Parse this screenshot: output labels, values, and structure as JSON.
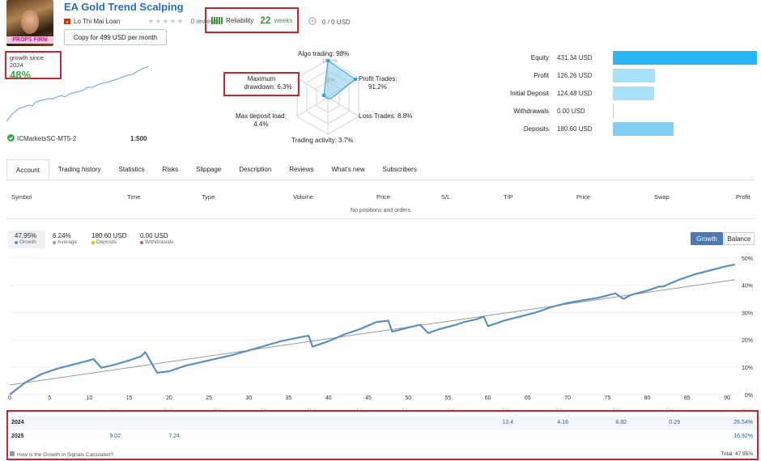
{
  "header": {
    "title": "EA Gold Trend Scalping",
    "author": "Lo Thi Mai Loan",
    "avatar_banner": "PROPS FIRM",
    "reviews": "0 reviews",
    "copy_button": "Copy for 499 USD per month",
    "reliability_label": "Reliability",
    "weeks_value": "22",
    "weeks_label": "weeks",
    "subscribers": "0 / 0 USD"
  },
  "growth_summary": {
    "label": "growth since 2024",
    "value": "48%",
    "broker": "ICMarketsSC-MT5-2",
    "leverage": "1:500"
  },
  "radar": {
    "algo": "Algo trading: 98%",
    "hundred": "100+%",
    "fifty": "50%",
    "profit_trades_1": "Profit Trades:",
    "profit_trades_2": "91.2%",
    "max_dd_1": "Maximum",
    "max_dd_2": "drawdown: 6.3%",
    "deposit_load_1": "Max deposit load:",
    "deposit_load_2": "4.4%",
    "loss_trades": "Loss Trades: 8.8%",
    "trading_activity": "Trading activity: 3.7%"
  },
  "financials": [
    {
      "label": "Equity",
      "value": "431.34 USD",
      "amount": 431.34
    },
    {
      "label": "Profit",
      "value": "126.26 USD",
      "amount": 126.26
    },
    {
      "label": "Initial Deposit",
      "value": "124.48 USD",
      "amount": 124.48
    },
    {
      "label": "Withdrawals",
      "value": "0.00 USD",
      "amount": 0
    },
    {
      "label": "Deposits",
      "value": "180.60 USD",
      "amount": 180.6
    }
  ],
  "tabs": [
    "Account",
    "Trading history",
    "Statistics",
    "Risks",
    "Slippage",
    "Description",
    "Reviews",
    "What's new",
    "Subscribers"
  ],
  "positions_table": {
    "headers": [
      "Symbol",
      "Time",
      "Type",
      "Volume",
      "Price",
      "S/L",
      "T/P",
      "Price",
      "Swap",
      "Profit"
    ],
    "empty_text": "No positions and orders"
  },
  "chart_stats": {
    "growth_value": "47.95%",
    "growth_label": "Growth",
    "average_value": "6.24%",
    "average_label": "Average",
    "deposits_value": "180.60 USD",
    "deposits_label": "Deposits",
    "withdrawals_value": "0.00 USD",
    "withdrawals_label": "Withdrawals",
    "btn_growth": "Growth",
    "btn_balance": "Balance"
  },
  "colors": {
    "growth_line": "#5b8fc2",
    "trend_line": "#999999",
    "accent": "#29b6f6",
    "reliability": "#3a9a3a"
  },
  "chart_data": {
    "type": "line",
    "x_ticks": [
      "0",
      "5",
      "10",
      "15",
      "20",
      "25",
      "30",
      "35",
      "40",
      "45",
      "50",
      "55",
      "60",
      "65",
      "70",
      "75",
      "80",
      "85",
      "90"
    ],
    "y_ticks": [
      "0%",
      "10%",
      "20%",
      "30%",
      "40%",
      "50%"
    ],
    "ylim": [
      -3,
      52
    ],
    "xlim": [
      0,
      91
    ],
    "month_labels": [
      "Jan",
      "Feb",
      "Mar",
      "Apr",
      "May",
      "Jun",
      "Jul",
      "Aug",
      "Sep",
      "Oct",
      "Nov",
      "Dec",
      "Year"
    ],
    "series": [
      {
        "x": [
          0,
          2,
          4,
          6,
          8,
          10,
          10.5,
          11.5,
          13,
          15,
          16.5,
          17,
          18.5,
          20,
          22,
          25,
          28,
          31,
          34,
          36.5,
          37.5,
          38,
          40,
          42,
          44,
          46,
          47.5,
          48,
          50,
          51.5,
          52.5,
          54,
          56,
          57,
          58.5,
          59.5,
          60,
          62,
          64,
          66,
          68,
          70,
          72,
          74,
          76,
          76.5,
          77,
          78,
          80,
          81.5,
          82,
          84,
          86,
          88,
          90,
          91
        ],
        "y": [
          0,
          4.5,
          7.5,
          9.5,
          11,
          12.5,
          13,
          9.8,
          10.8,
          12.5,
          14,
          15.5,
          8,
          8.5,
          10.5,
          12.5,
          14.5,
          17,
          19.5,
          21,
          21.5,
          17.5,
          19.5,
          22,
          24,
          26.5,
          27,
          23,
          24.5,
          25.5,
          22.5,
          24,
          25.5,
          26.5,
          27.5,
          28.5,
          25,
          27,
          28.5,
          30,
          32,
          33.5,
          34.5,
          35.5,
          37,
          36,
          35,
          36.5,
          38,
          39.5,
          39.5,
          42,
          44,
          45.5,
          47,
          47.5
        ]
      },
      {
        "x": [
          0,
          91
        ],
        "y": [
          3.5,
          42
        ]
      }
    ],
    "yearly_table": {
      "rows": [
        {
          "year": "2024",
          "months": {
            "Sep": "13.4",
            "Oct": "4.16",
            "Nov": "6.82",
            "Dec": "0.29"
          },
          "total": "26.54%"
        },
        {
          "year": "2025",
          "months": {
            "Jan": "9.02",
            "Feb": "7.24"
          },
          "total": "16.92%"
        }
      ],
      "footer_link": "How is the Growth in Signals Calculated?",
      "footer_total": "Total: 47.95%"
    }
  }
}
